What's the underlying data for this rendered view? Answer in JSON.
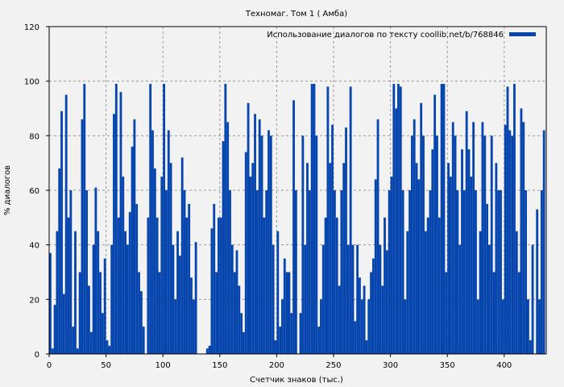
{
  "chart_data": {
    "type": "bar",
    "title": "Техномаг. Том 1 ( Амба)",
    "xlabel": "Счетчик знаков (тыс.)",
    "ylabel": "% диалогов",
    "xlim": [
      0,
      437
    ],
    "ylim": [
      0,
      120
    ],
    "xticks": [
      0,
      50,
      100,
      150,
      200,
      250,
      300,
      350,
      400
    ],
    "yticks": [
      0,
      20,
      40,
      60,
      80,
      100,
      120
    ],
    "grid": true,
    "legend": {
      "position": "top-right",
      "entries": [
        "Использование диалогов по тексту coollib.net/b/768846"
      ]
    },
    "series": [
      {
        "name": "Использование диалогов по тексту coollib.net/b/768846",
        "color": "#0645ad",
        "bin_width": 2,
        "x_start": 0,
        "values": [
          37,
          2,
          18,
          45,
          68,
          89,
          22,
          95,
          50,
          60,
          10,
          45,
          2,
          30,
          86,
          99,
          60,
          25,
          8,
          40,
          61,
          45,
          30,
          15,
          35,
          5,
          3,
          40,
          88,
          99,
          50,
          96,
          65,
          45,
          40,
          52,
          76,
          86,
          55,
          30,
          23,
          10,
          0,
          50,
          99,
          82,
          68,
          50,
          30,
          65,
          99,
          60,
          82,
          70,
          40,
          20,
          45,
          36,
          72,
          60,
          50,
          55,
          28,
          20,
          41,
          0,
          0,
          0,
          0,
          2,
          3,
          46,
          55,
          30,
          50,
          50,
          78,
          99,
          85,
          60,
          40,
          30,
          38,
          25,
          15,
          8,
          74,
          92,
          65,
          70,
          88,
          60,
          86,
          80,
          50,
          60,
          82,
          80,
          40,
          5,
          45,
          10,
          20,
          35,
          30,
          30,
          15,
          93,
          60,
          0,
          15,
          80,
          40,
          70,
          60,
          99,
          99,
          80,
          10,
          20,
          40,
          50,
          98,
          70,
          84,
          60,
          50,
          25,
          60,
          70,
          83,
          40,
          98,
          40,
          12,
          40,
          28,
          20,
          25,
          5,
          20,
          30,
          35,
          64,
          86,
          40,
          25,
          50,
          38,
          60,
          65,
          99,
          90,
          99,
          98,
          60,
          20,
          45,
          60,
          80,
          86,
          70,
          64,
          92,
          80,
          45,
          50,
          60,
          75,
          95,
          80,
          50,
          99,
          99,
          30,
          70,
          65,
          85,
          80,
          60,
          40,
          75,
          60,
          89,
          75,
          65,
          85,
          60,
          20,
          45,
          85,
          80,
          55,
          40,
          80,
          30,
          70,
          60,
          60,
          20,
          84,
          98,
          82,
          80,
          99,
          45,
          30,
          90,
          85,
          60,
          20,
          5,
          40,
          0,
          53,
          20,
          60,
          82
        ]
      }
    ]
  }
}
